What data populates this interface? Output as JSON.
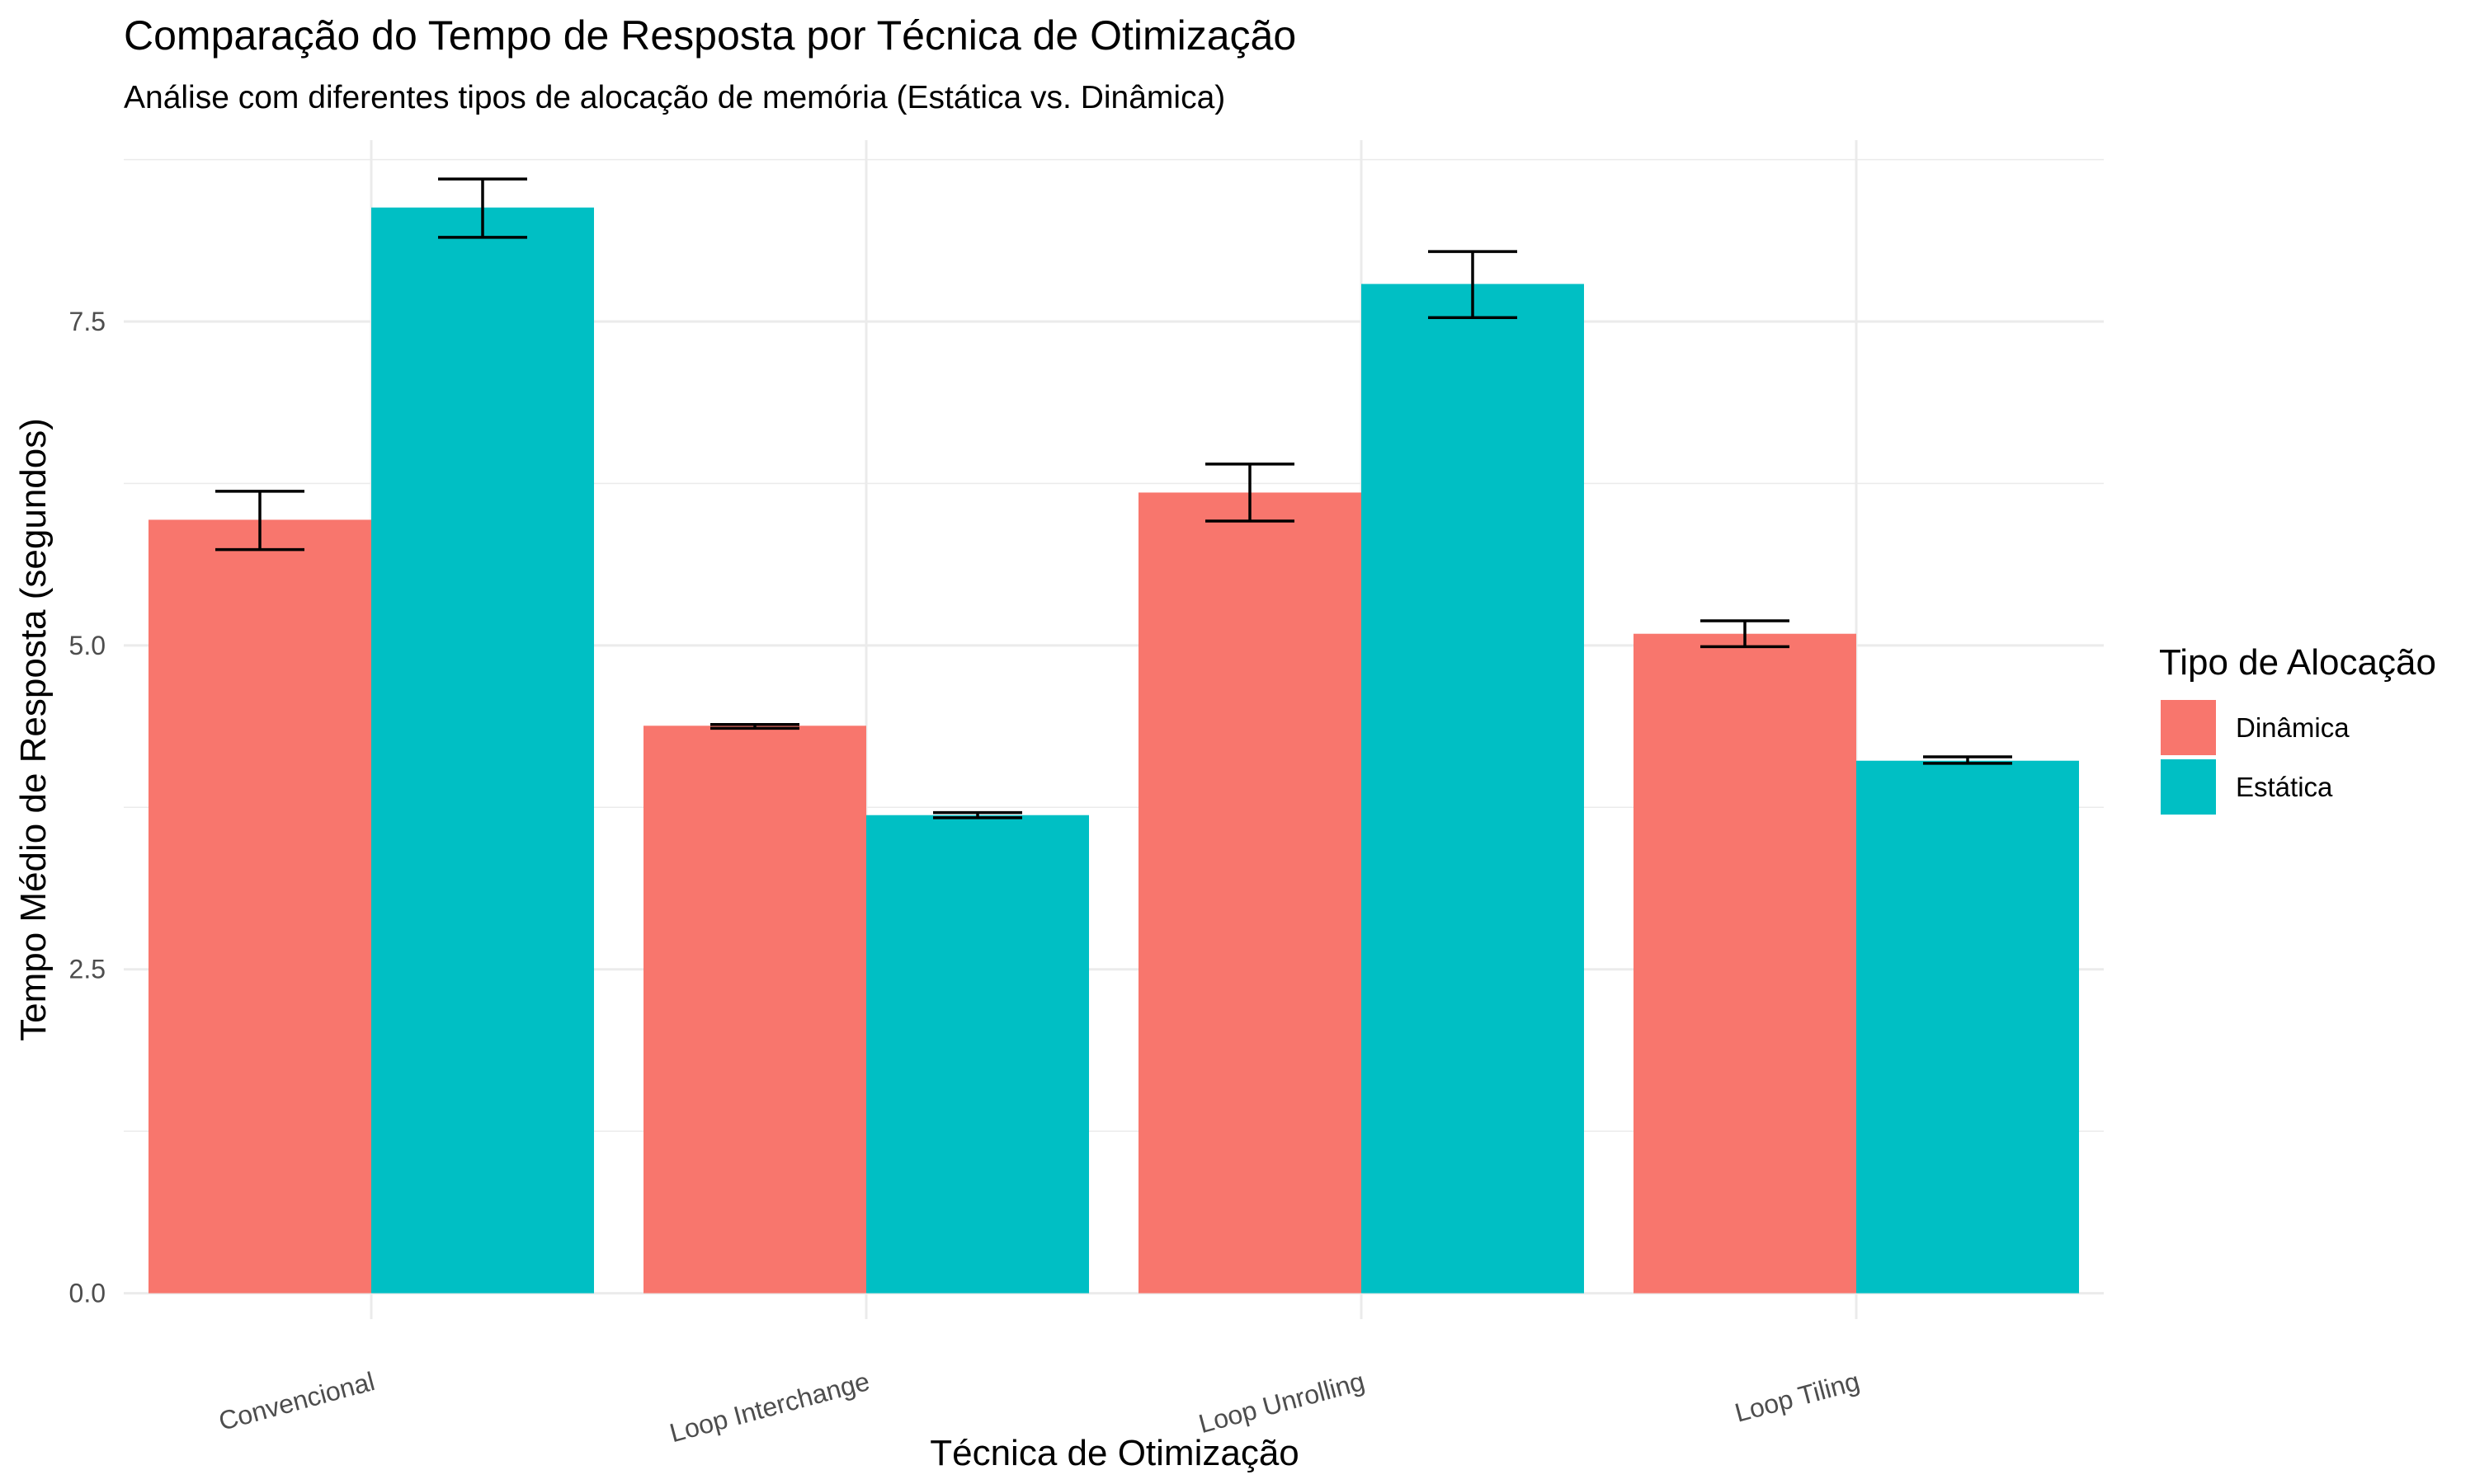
{
  "chart_data": {
    "type": "bar",
    "title": "Comparação do Tempo de Resposta por Técnica de Otimização",
    "subtitle": "Análise com diferentes tipos de alocação de memória (Estática vs. Dinâmica)",
    "xlabel": "Técnica de Otimização",
    "ylabel": "Tempo Médio de Resposta (segundos)",
    "categories": [
      "Convencional",
      "Loop Interchange",
      "Loop Unrolling",
      "Loop Tiling"
    ],
    "ylim": [
      -0.2,
      8.9
    ],
    "yticks": [
      0.0,
      2.5,
      5.0,
      7.5
    ],
    "ytick_labels": [
      "0.0",
      "2.5",
      "5.0",
      "7.5"
    ],
    "grid": true,
    "x_tick_rotation_deg": -15,
    "legend": {
      "title": "Tipo de Alocação",
      "position": "right"
    },
    "series": [
      {
        "name": "Dinâmica",
        "color": "#F8766D",
        "values": [
          5.97,
          4.38,
          6.18,
          5.09
        ],
        "error_low": [
          5.74,
          4.36,
          5.96,
          4.99
        ],
        "error_high": [
          6.19,
          4.39,
          6.4,
          5.19
        ]
      },
      {
        "name": "Estática",
        "color": "#00BFC4",
        "values": [
          8.38,
          3.69,
          7.79,
          4.11
        ],
        "error_low": [
          8.15,
          3.67,
          7.53,
          4.09
        ],
        "error_high": [
          8.6,
          3.71,
          8.04,
          4.14
        ]
      }
    ]
  }
}
